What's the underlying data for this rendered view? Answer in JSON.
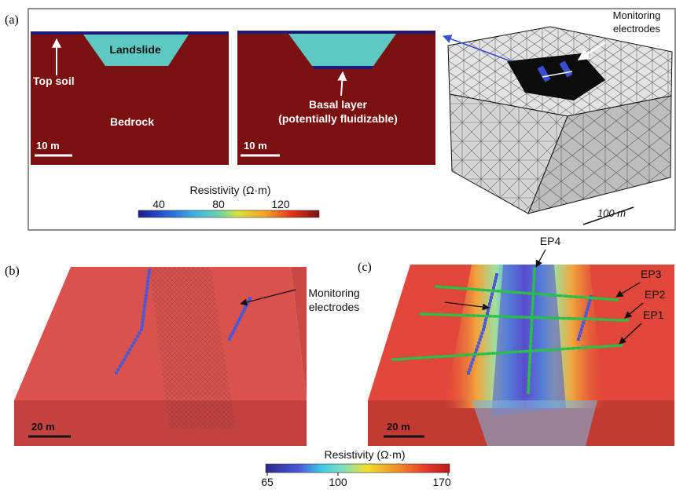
{
  "panel_a": {
    "label": "(a)",
    "left_section": {
      "landslide": "Landslide",
      "top_soil": "Top soil",
      "bedrock": "Bedrock",
      "scale": "10 m"
    },
    "right_section": {
      "basal_line1": "Basal layer",
      "basal_line2": "(potentially fluidizable)",
      "scale": "10 m"
    },
    "colorbar": {
      "title": "Resistivity (Ω·m)",
      "ticks": [
        "40",
        "80",
        "120"
      ]
    },
    "mesh": {
      "monitoring_line1": "Monitoring",
      "monitoring_line2": "electrodes",
      "scale": "100 m"
    }
  },
  "panel_b": {
    "label": "(b)",
    "monitoring_line1": "Monitoring",
    "monitoring_line2": "electrodes",
    "scale": "20 m"
  },
  "panel_c": {
    "label": "(c)",
    "profiles": [
      "EP4",
      "EP3",
      "EP2",
      "EP1"
    ],
    "scale": "20 m"
  },
  "bottom_colorbar": {
    "title": "Resistivity (Ω·m)",
    "ticks": [
      "65",
      "100",
      "170"
    ]
  },
  "colors": {
    "bedrock": "#7a1010",
    "landslide": "#5ec9c2",
    "top_soil": "#1c1a7a",
    "electrode": "#4b57d9",
    "profile": "#2bbf4a"
  }
}
